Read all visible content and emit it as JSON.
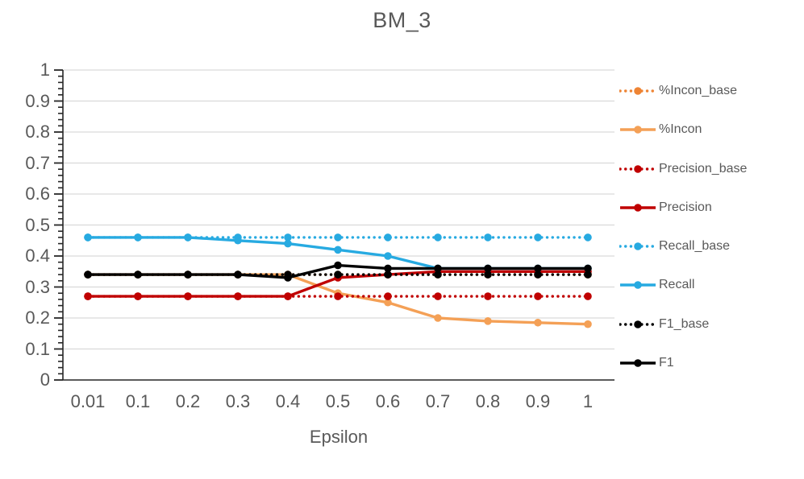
{
  "title": "BM_3",
  "chart_data": {
    "type": "line",
    "title": "BM_3",
    "xlabel": "Epsilon",
    "ylabel": "",
    "ylim": [
      0,
      1
    ],
    "grid": true,
    "legend_position": "right",
    "categories": [
      0.01,
      0.1,
      0.2,
      0.3,
      0.4,
      0.5,
      0.6,
      0.7,
      0.8,
      0.9,
      1
    ],
    "x_tick_labels": [
      "0.01",
      "0.1",
      "0.2",
      "0.3",
      "0.4",
      "0.5",
      "0.6",
      "0.7",
      "0.8",
      "0.9",
      "1"
    ],
    "y_tick_labels": [
      "1",
      "0.9",
      "0.8",
      "0.7",
      "0.6",
      "0.5",
      "0.4",
      "0.3",
      "0.2",
      "0.1",
      "0"
    ],
    "y_major_step": 0.1,
    "y_minor_step": 0.02,
    "series": [
      {
        "name": "%Incon_base",
        "color": "#EE8434",
        "style": "dotted",
        "values": [
          0.34,
          0.34,
          0.34,
          0.34,
          0.34,
          0.34,
          0.34,
          0.34,
          0.34,
          0.34,
          0.34
        ]
      },
      {
        "name": "%Incon",
        "color": "#F4A056",
        "style": "solid",
        "values": [
          0.34,
          0.34,
          0.34,
          0.34,
          0.34,
          0.28,
          0.25,
          0.2,
          0.19,
          0.185,
          0.18
        ]
      },
      {
        "name": "Precision_base",
        "color": "#C00000",
        "style": "dotted",
        "values": [
          0.27,
          0.27,
          0.27,
          0.27,
          0.27,
          0.27,
          0.27,
          0.27,
          0.27,
          0.27,
          0.27
        ]
      },
      {
        "name": "Precision",
        "color": "#C00000",
        "style": "solid",
        "values": [
          0.27,
          0.27,
          0.27,
          0.27,
          0.27,
          0.33,
          0.34,
          0.35,
          0.35,
          0.35,
          0.35
        ]
      },
      {
        "name": "Recall_base",
        "color": "#27AAE1",
        "style": "dotted",
        "values": [
          0.46,
          0.46,
          0.46,
          0.46,
          0.46,
          0.46,
          0.46,
          0.46,
          0.46,
          0.46,
          0.46
        ]
      },
      {
        "name": "Recall",
        "color": "#27AAE1",
        "style": "solid",
        "values": [
          0.46,
          0.46,
          0.46,
          0.45,
          0.44,
          0.42,
          0.4,
          0.36,
          0.36,
          0.36,
          0.36
        ]
      },
      {
        "name": "F1_base",
        "color": "#000000",
        "style": "dotted",
        "values": [
          0.34,
          0.34,
          0.34,
          0.34,
          0.34,
          0.34,
          0.34,
          0.34,
          0.34,
          0.34,
          0.34
        ]
      },
      {
        "name": "F1",
        "color": "#000000",
        "style": "solid",
        "values": [
          0.34,
          0.34,
          0.34,
          0.34,
          0.33,
          0.37,
          0.36,
          0.36,
          0.36,
          0.36,
          0.36
        ]
      }
    ]
  },
  "colors": {
    "gridline": "#D9D9D9",
    "axis_line": "#262626",
    "tick_mark": "#262626",
    "label_text": "#595959"
  }
}
